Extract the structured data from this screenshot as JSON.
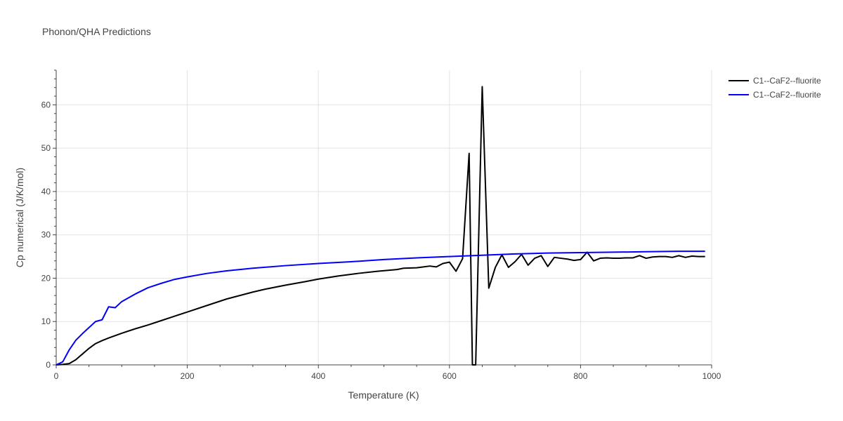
{
  "chart_data": {
    "type": "line",
    "title": "Phonon/QHA Predictions",
    "xlabel": "Temperature (K)",
    "ylabel": "Cp numerical (J/K/mol)",
    "xlim": [
      0,
      1000
    ],
    "ylim": [
      0,
      68
    ],
    "x_ticks": [
      0,
      200,
      400,
      600,
      800,
      1000
    ],
    "y_ticks": [
      0,
      10,
      20,
      30,
      40,
      50,
      60
    ],
    "x_tick_labels": [
      "0",
      "200",
      "400",
      "600",
      "800",
      "1000"
    ],
    "y_tick_labels": [
      "0",
      "10",
      "20",
      "30",
      "40",
      "50",
      "60"
    ],
    "grid": true,
    "legend_position": "top-right",
    "series": [
      {
        "name": "C1--CaF2--fluorite",
        "color": "#000000",
        "x": [
          0,
          10,
          20,
          30,
          40,
          50,
          60,
          70,
          80,
          100,
          120,
          140,
          160,
          180,
          200,
          230,
          260,
          300,
          320,
          350,
          380,
          400,
          430,
          460,
          490,
          520,
          530,
          550,
          570,
          580,
          590,
          600,
          610,
          620,
          630,
          635,
          640,
          650,
          660,
          670,
          680,
          690,
          700,
          710,
          720,
          730,
          740,
          750,
          760,
          770,
          780,
          790,
          800,
          810,
          820,
          830,
          840,
          850,
          860,
          870,
          880,
          890,
          900,
          910,
          920,
          930,
          940,
          950,
          960,
          970,
          980,
          990
        ],
        "y": [
          0,
          0.1,
          0.3,
          1.2,
          2.5,
          3.8,
          4.9,
          5.6,
          6.2,
          7.3,
          8.3,
          9.2,
          10.2,
          11.2,
          12.2,
          13.7,
          15.2,
          16.8,
          17.5,
          18.4,
          19.2,
          19.8,
          20.5,
          21.1,
          21.6,
          22.0,
          22.3,
          22.4,
          22.8,
          22.6,
          23.4,
          23.7,
          21.6,
          24.5,
          48.8,
          0,
          0,
          64.2,
          17.7,
          22.5,
          25.4,
          22.5,
          23.8,
          25.5,
          23.0,
          24.6,
          25.2,
          22.7,
          24.8,
          24.6,
          24.4,
          24.1,
          24.3,
          26.0,
          24.0,
          24.6,
          24.7,
          24.6,
          24.6,
          24.7,
          24.7,
          25.2,
          24.6,
          24.9,
          25.0,
          25.0,
          24.8,
          25.2,
          24.8,
          25.1,
          25.0,
          25.0
        ]
      },
      {
        "name": "C1--CaF2--fluorite",
        "color": "#0000ff",
        "x": [
          0,
          10,
          20,
          30,
          40,
          50,
          60,
          70,
          80,
          90,
          100,
          120,
          140,
          160,
          180,
          200,
          230,
          260,
          300,
          350,
          400,
          450,
          500,
          550,
          600,
          650,
          700,
          750,
          800,
          850,
          900,
          950,
          990
        ],
        "y": [
          0,
          0.7,
          3.5,
          5.7,
          7.2,
          8.6,
          10.0,
          10.4,
          13.4,
          13.2,
          14.6,
          16.3,
          17.8,
          18.8,
          19.7,
          20.3,
          21.1,
          21.7,
          22.3,
          22.9,
          23.4,
          23.8,
          24.3,
          24.7,
          25.0,
          25.3,
          25.6,
          25.8,
          25.9,
          26.0,
          26.1,
          26.2,
          26.2
        ]
      }
    ]
  }
}
